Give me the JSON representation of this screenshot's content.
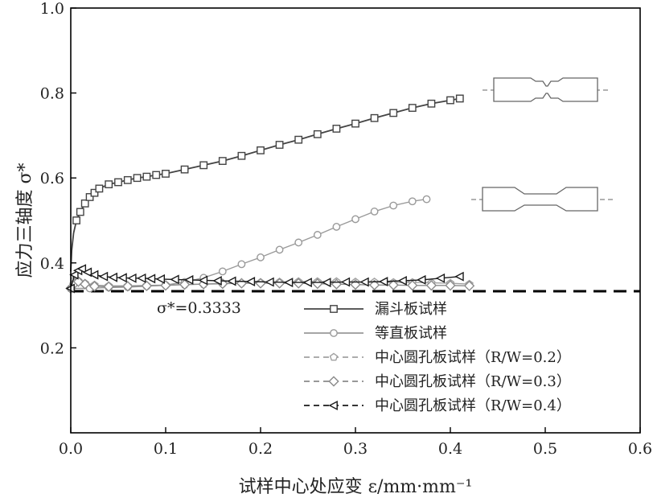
{
  "chart_data": {
    "type": "line",
    "xlabel": "试样中心处应变 ε/mm·mm⁻¹",
    "ylabel": "应力三轴度 σ*",
    "xlim": [
      0,
      0.6
    ],
    "ylim": [
      0,
      1.0
    ],
    "xticks": [
      "0.0",
      "0.1",
      "0.2",
      "0.3",
      "0.4",
      "0.5",
      "0.6"
    ],
    "yticks": [
      "0.2",
      "0.4",
      "0.6",
      "0.8",
      "1.0"
    ],
    "grid": false,
    "legend_position": "bottom-right",
    "reference_line": {
      "y": 0.3333,
      "label": "σ*=0.3333",
      "style": "dashed",
      "color": "#000000"
    },
    "series": [
      {
        "name": "漏斗板试样",
        "marker": "square",
        "color": "#444444",
        "x": [
          0.0,
          0.001,
          0.003,
          0.006,
          0.01,
          0.015,
          0.02,
          0.025,
          0.03,
          0.04,
          0.05,
          0.06,
          0.07,
          0.08,
          0.09,
          0.1,
          0.12,
          0.14,
          0.16,
          0.18,
          0.2,
          0.22,
          0.24,
          0.26,
          0.28,
          0.3,
          0.32,
          0.34,
          0.36,
          0.38,
          0.4,
          0.41
        ],
        "y": [
          0.38,
          0.43,
          0.47,
          0.5,
          0.52,
          0.54,
          0.555,
          0.565,
          0.575,
          0.585,
          0.59,
          0.595,
          0.6,
          0.603,
          0.607,
          0.61,
          0.62,
          0.63,
          0.64,
          0.652,
          0.665,
          0.678,
          0.69,
          0.703,
          0.716,
          0.728,
          0.741,
          0.753,
          0.765,
          0.775,
          0.783,
          0.787
        ]
      },
      {
        "name": "等直板试样",
        "marker": "circle",
        "color": "#9a9a9a",
        "x": [
          0.0,
          0.02,
          0.04,
          0.06,
          0.08,
          0.1,
          0.12,
          0.14,
          0.16,
          0.18,
          0.2,
          0.22,
          0.24,
          0.26,
          0.28,
          0.3,
          0.32,
          0.34,
          0.36,
          0.375
        ],
        "y": [
          0.34,
          0.34,
          0.342,
          0.343,
          0.345,
          0.348,
          0.355,
          0.365,
          0.38,
          0.397,
          0.413,
          0.431,
          0.448,
          0.466,
          0.485,
          0.503,
          0.521,
          0.535,
          0.545,
          0.55
        ]
      },
      {
        "name": "中心圆孔板试样（R/W=0.2）",
        "marker": "pentagon",
        "color": "#a0a0a0",
        "x": [
          0.0,
          0.004,
          0.008,
          0.015,
          0.025,
          0.04,
          0.06,
          0.08,
          0.1,
          0.12,
          0.14,
          0.16,
          0.18,
          0.2,
          0.22,
          0.24,
          0.26,
          0.28,
          0.3,
          0.32,
          0.34,
          0.36,
          0.38,
          0.4,
          0.42
        ],
        "y": [
          0.34,
          0.36,
          0.358,
          0.352,
          0.348,
          0.346,
          0.346,
          0.347,
          0.348,
          0.349,
          0.35,
          0.352,
          0.353,
          0.354,
          0.355,
          0.356,
          0.356,
          0.356,
          0.355,
          0.355,
          0.354,
          0.354,
          0.353,
          0.352,
          0.35
        ]
      },
      {
        "name": "中心圆孔板试样（R/W=0.3）",
        "marker": "diamond",
        "color": "#8a8a8a",
        "x": [
          0.0,
          0.004,
          0.008,
          0.015,
          0.025,
          0.04,
          0.06,
          0.08,
          0.1,
          0.12,
          0.14,
          0.16,
          0.18,
          0.2,
          0.22,
          0.24,
          0.26,
          0.28,
          0.3,
          0.32,
          0.34,
          0.36,
          0.38,
          0.4,
          0.42
        ],
        "y": [
          0.34,
          0.352,
          0.356,
          0.35,
          0.345,
          0.344,
          0.345,
          0.346,
          0.347,
          0.349,
          0.35,
          0.351,
          0.352,
          0.352,
          0.352,
          0.352,
          0.351,
          0.35,
          0.349,
          0.348,
          0.348,
          0.347,
          0.347,
          0.347,
          0.346
        ]
      },
      {
        "name": "中心圆孔板试样（R/W=0.4）",
        "marker": "triangle-left",
        "color": "#1a1a1a",
        "x": [
          0.0,
          0.004,
          0.008,
          0.012,
          0.018,
          0.025,
          0.035,
          0.045,
          0.055,
          0.065,
          0.075,
          0.085,
          0.095,
          0.11,
          0.125,
          0.14,
          0.155,
          0.17,
          0.19,
          0.21,
          0.23,
          0.25,
          0.27,
          0.29,
          0.31,
          0.33,
          0.35,
          0.37,
          0.39,
          0.41
        ],
        "y": [
          0.34,
          0.372,
          0.382,
          0.386,
          0.378,
          0.372,
          0.368,
          0.366,
          0.365,
          0.364,
          0.364,
          0.363,
          0.362,
          0.361,
          0.36,
          0.359,
          0.358,
          0.357,
          0.356,
          0.355,
          0.354,
          0.354,
          0.354,
          0.355,
          0.355,
          0.356,
          0.358,
          0.36,
          0.364,
          0.368
        ]
      }
    ]
  }
}
